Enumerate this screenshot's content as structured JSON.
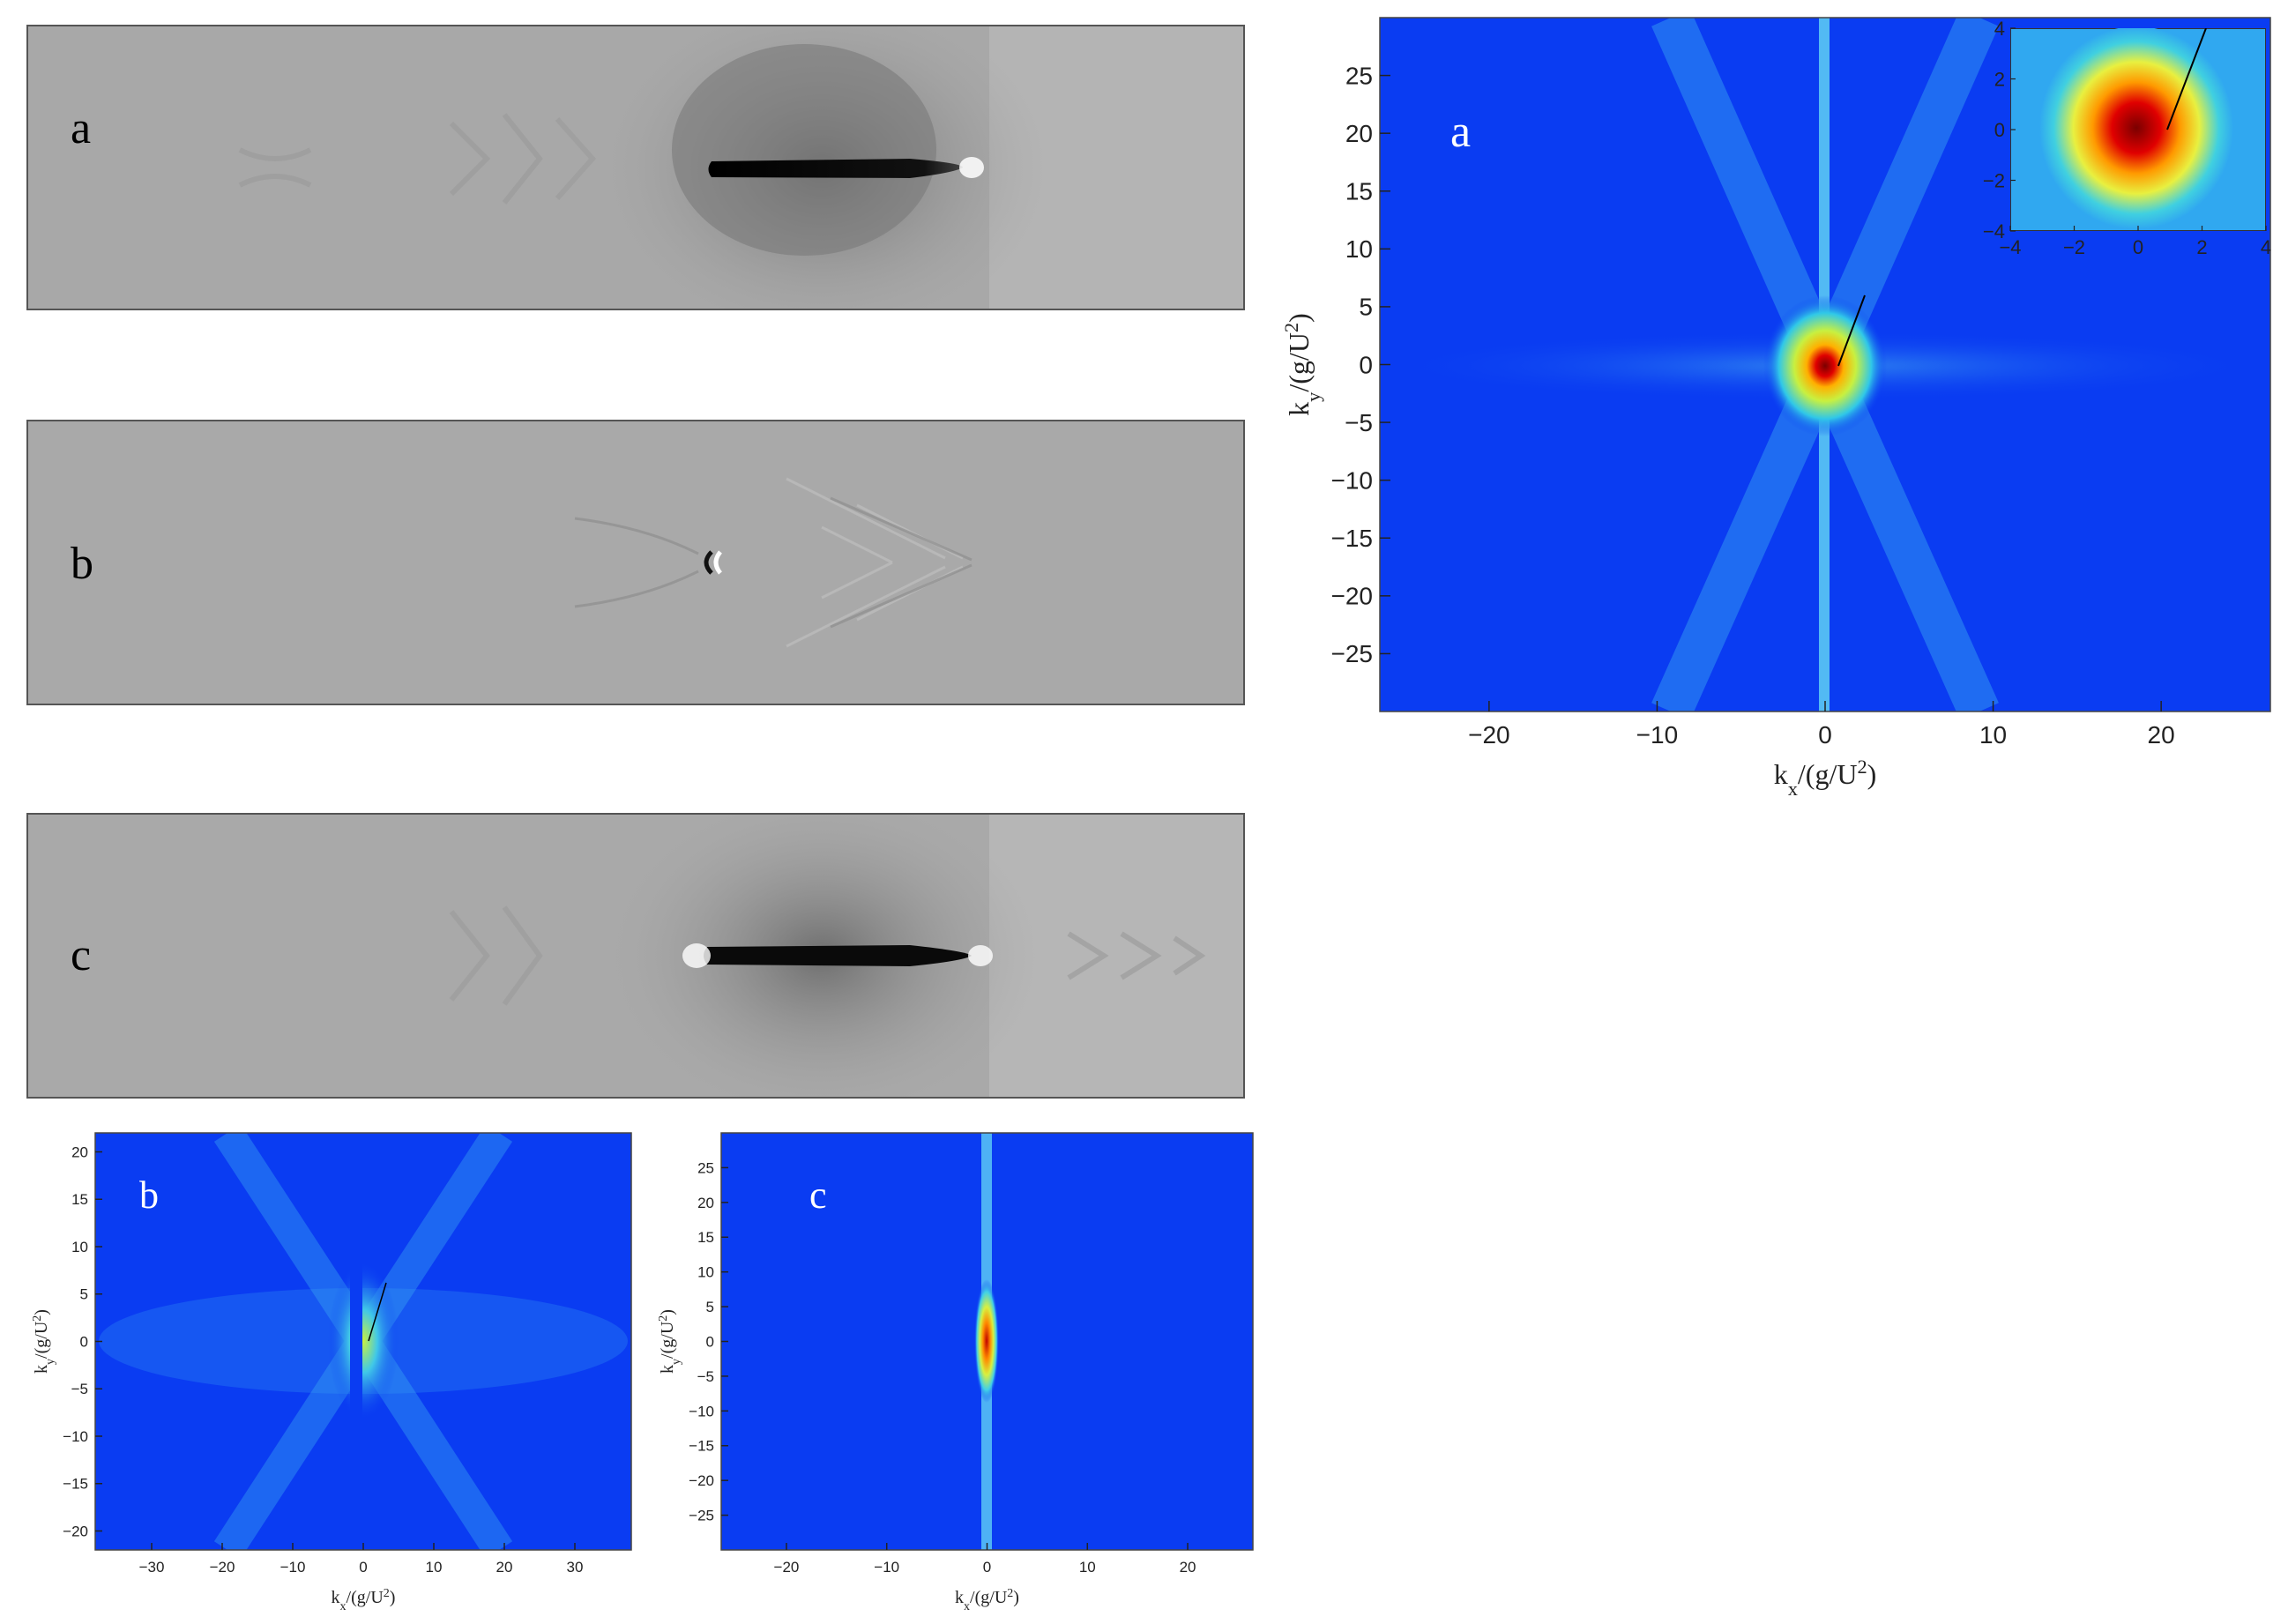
{
  "labels": {
    "wave_a": "a",
    "wave_b": "b",
    "wave_c": "c",
    "spec_a": "a",
    "spec_b": "b",
    "spec_c": "c"
  },
  "colors": {
    "spectrum_background": "#0a3cf2",
    "spectrum_core": "#c80000",
    "wave_background": "#a8a8a8",
    "hull": "#050505"
  },
  "chart_data": [
    {
      "type": "heatmap",
      "panel": "a",
      "xlabel": "k_x/(g/U^2)",
      "ylabel": "k_y/(g/U^2)",
      "xlim": [
        -26.5,
        26.5
      ],
      "ylim": [
        -30,
        30
      ],
      "xticks": [
        -20,
        -10,
        0,
        10,
        20
      ],
      "yticks": [
        25,
        20,
        15,
        10,
        5,
        0,
        -5,
        -10,
        -15,
        -20,
        -25
      ],
      "inset": {
        "xlim": [
          -4,
          4
        ],
        "ylim": [
          -4,
          4
        ],
        "xticks": [
          -4,
          -2,
          0,
          2,
          4
        ],
        "yticks": [
          4,
          2,
          0,
          -2,
          -4
        ]
      }
    },
    {
      "type": "heatmap",
      "panel": "b",
      "xlabel": "k_x/(g/U^2)",
      "ylabel": "k_y/(g/U^2)",
      "xlim": [
        -38,
        38
      ],
      "ylim": [
        -22,
        22
      ],
      "xticks": [
        -30,
        -20,
        -10,
        0,
        10,
        20,
        30
      ],
      "yticks": [
        20,
        15,
        10,
        5,
        0,
        -5,
        -10,
        -15,
        -20
      ]
    },
    {
      "type": "heatmap",
      "panel": "c",
      "xlabel": "k_x/(g/U^2)",
      "ylabel": "k_y/(g/U^2)",
      "xlim": [
        -26.5,
        26.5
      ],
      "ylim": [
        -30,
        30
      ],
      "xticks": [
        -20,
        -10,
        0,
        10,
        20
      ],
      "yticks": [
        25,
        20,
        15,
        10,
        5,
        0,
        -5,
        -10,
        -15,
        -20,
        -25
      ]
    }
  ]
}
